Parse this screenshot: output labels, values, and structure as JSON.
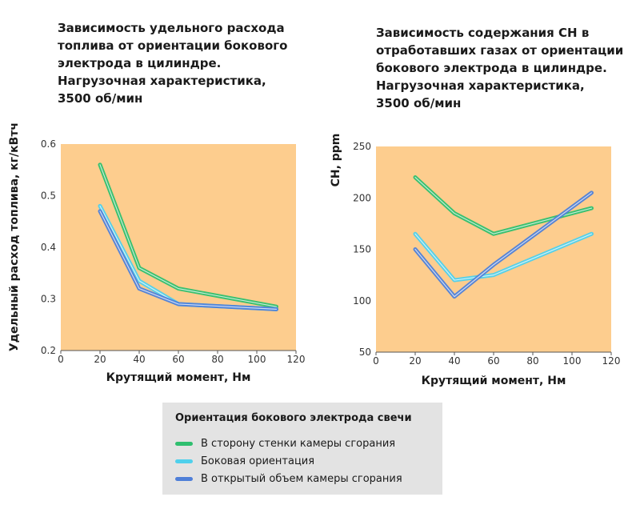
{
  "colors": {
    "plot_bg": "#fdcd8e",
    "green": "#2fbf6f",
    "cyan": "#4fd0ec",
    "blue": "#4f7fd8"
  },
  "chart_data": [
    {
      "type": "line",
      "title": "Зависимость удельного расхода\nтоплива от ориентации бокового\nэлектрода в цилиндре.\nНагрузочная характеристика,\n3500 об/мин",
      "xlabel": "Крутящий момент, Нм",
      "ylabel": "Удельный расход топлива, кг/кВтч",
      "xlim": [
        0,
        120
      ],
      "ylim": [
        0.2,
        0.6
      ],
      "xticks": [
        0,
        20,
        40,
        60,
        80,
        100,
        120
      ],
      "yticks": [
        0.2,
        0.3,
        0.4,
        0.5,
        0.6
      ],
      "ytick_labels": [
        "0.2",
        "0.3",
        "0.4",
        "0.5",
        "0.6"
      ],
      "x": [
        20,
        40,
        60,
        110
      ],
      "series": [
        {
          "name": "В сторону стенки камеры сгорания",
          "values": [
            0.56,
            0.36,
            0.32,
            0.285
          ]
        },
        {
          "name": "Боковая ориентация",
          "values": [
            0.48,
            0.335,
            0.29,
            0.28
          ]
        },
        {
          "name": "В открытый объем камеры сгорания",
          "values": [
            0.47,
            0.32,
            0.29,
            0.28
          ]
        }
      ]
    },
    {
      "type": "line",
      "title": "Зависимость содержания СН в\nотработавших газах от ориентации\nбокового электрода в цилиндре.\nНагрузочная характеристика,\n3500 об/мин",
      "xlabel": "Крутящий момент, Нм",
      "ylabel": "CH, ppm",
      "xlim": [
        0,
        120
      ],
      "ylim": [
        50,
        250
      ],
      "xticks": [
        0,
        20,
        40,
        60,
        80,
        100,
        120
      ],
      "yticks": [
        50,
        100,
        150,
        200,
        250
      ],
      "ytick_labels": [
        "50",
        "100",
        "150",
        "200",
        "250"
      ],
      "x": [
        20,
        40,
        60,
        110
      ],
      "series": [
        {
          "name": "В сторону стенки камеры сгорания",
          "values": [
            220,
            185,
            165,
            190
          ]
        },
        {
          "name": "Боковая ориентация",
          "values": [
            165,
            120,
            125,
            165
          ]
        },
        {
          "name": "В открытый объем камеры сгорания",
          "values": [
            150,
            104,
            135,
            205
          ]
        }
      ]
    }
  ],
  "legend": {
    "title": "Ориентация бокового электрода свечи",
    "items": [
      "В сторону стенки камеры сгорания",
      "Боковая ориентация",
      "В открытый объем камеры сгорания"
    ]
  }
}
